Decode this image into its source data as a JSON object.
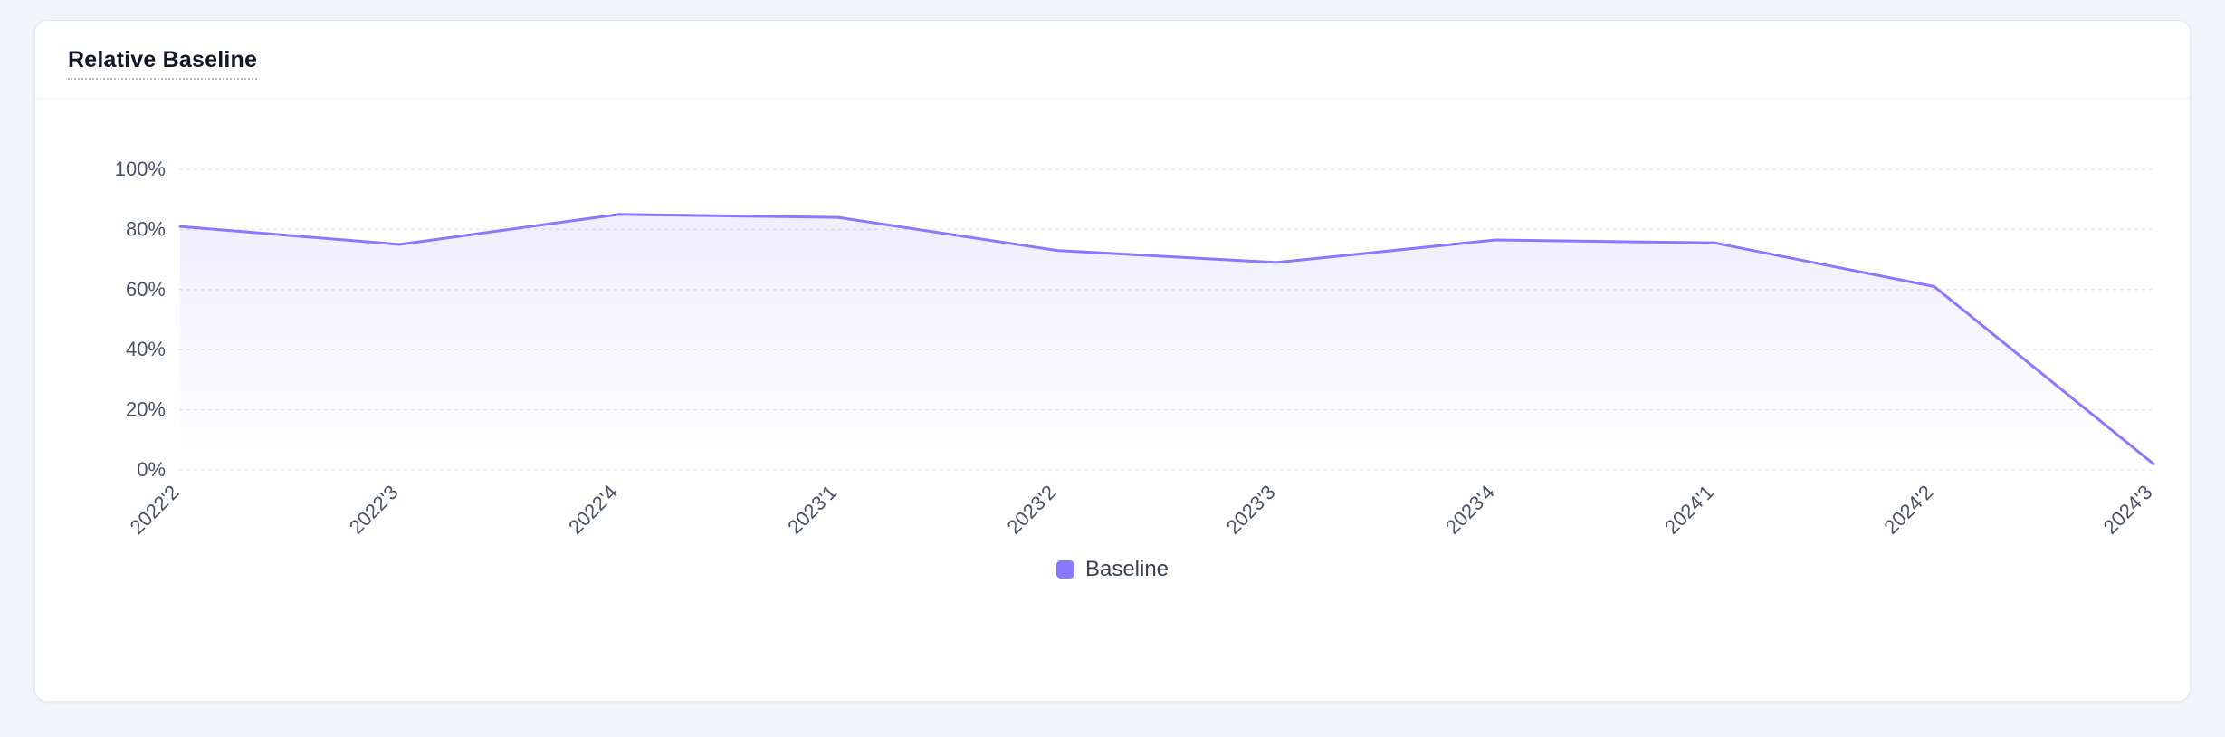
{
  "card": {
    "title": "Relative Baseline"
  },
  "legend": {
    "items": [
      {
        "label": "Baseline",
        "color": "#8979FF"
      }
    ]
  },
  "chart_data": {
    "type": "line",
    "title": "Relative Baseline",
    "categories": [
      "2022'2",
      "2022'3",
      "2022'4",
      "2023'1",
      "2023'2",
      "2023'3",
      "2023'4",
      "2024'1",
      "2024'2",
      "2024'3"
    ],
    "series": [
      {
        "name": "Baseline",
        "values": [
          81,
          75,
          85,
          84,
          73,
          69,
          76.5,
          75.5,
          61,
          2
        ]
      }
    ],
    "xlabel": "",
    "ylabel": "",
    "ylim": [
      0,
      100
    ],
    "yticks": [
      0,
      20,
      40,
      60,
      80,
      100
    ],
    "ytick_suffix": "%",
    "grid": "dotted-horizontal",
    "legend_position": "bottom",
    "line_color": "#8979FF",
    "area_fill_top": "rgba(137,121,255,0.13)",
    "area_fill_bottom": "rgba(137,121,255,0)",
    "axis_label_color": "#475569",
    "gridline_color": "#e0e4eb",
    "x_label_rotation": -45
  }
}
